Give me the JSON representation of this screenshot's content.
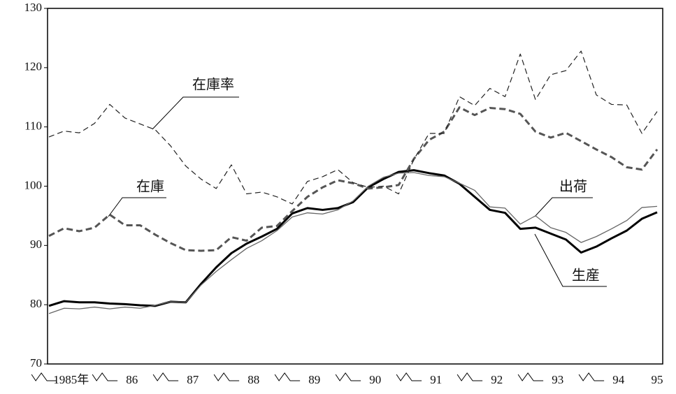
{
  "chart_data": {
    "type": "line",
    "categories": [
      null,
      "1985年",
      null,
      null,
      null,
      "86",
      null,
      null,
      null,
      "87",
      null,
      null,
      null,
      "88",
      null,
      null,
      null,
      "89",
      null,
      null,
      null,
      "90",
      null,
      null,
      null,
      "91",
      null,
      null,
      null,
      "92",
      null,
      null,
      null,
      "93",
      null,
      null,
      null,
      "94",
      null,
      null,
      "95"
    ],
    "ylim": [
      70,
      130
    ],
    "yticks": [
      70,
      80,
      90,
      100,
      110,
      120,
      130
    ],
    "series": [
      {
        "name": "生産",
        "color": "#000000",
        "width": 3,
        "dash": "none",
        "values": [
          79.8,
          80.6,
          80.4,
          80.4,
          80.2,
          80.1,
          79.9,
          79.8,
          80.5,
          80.4,
          83.5,
          86.3,
          88.7,
          90.3,
          91.5,
          92.8,
          95.4,
          96.3,
          96.0,
          96.3,
          97.3,
          99.8,
          101.2,
          102.4,
          102.7,
          102.2,
          101.8,
          100.4,
          98.2,
          96.0,
          95.5,
          92.8,
          93.0,
          92.0,
          91.0,
          88.8,
          89.8,
          91.2,
          92.5,
          94.5,
          95.6
        ]
      },
      {
        "name": "出荷",
        "color": "#666666",
        "width": 1.3,
        "dash": "none",
        "values": [
          78.5,
          79.4,
          79.3,
          79.6,
          79.3,
          79.6,
          79.4,
          79.9,
          80.5,
          80.4,
          83.3,
          85.6,
          87.6,
          89.5,
          90.8,
          92.5,
          94.8,
          95.5,
          95.3,
          96.0,
          97.5,
          100.0,
          101.5,
          102.2,
          102.3,
          101.8,
          101.6,
          100.5,
          99.3,
          96.5,
          96.3,
          93.6,
          95.0,
          93.0,
          92.2,
          90.5,
          91.5,
          92.8,
          94.2,
          96.4,
          96.6
        ]
      },
      {
        "name": "在庫",
        "color": "#555555",
        "width": 3,
        "dash": "9 5",
        "values": [
          91.6,
          92.9,
          92.4,
          93.0,
          95.2,
          93.4,
          93.4,
          91.8,
          90.4,
          89.2,
          89.1,
          89.2,
          91.4,
          90.8,
          93.0,
          93.3,
          95.8,
          98.2,
          99.8,
          101.0,
          100.5,
          99.6,
          99.8,
          100.2,
          104.6,
          107.8,
          109.2,
          113.3,
          112.0,
          113.2,
          113.0,
          112.2,
          109.2,
          108.2,
          109.0,
          107.6,
          106.2,
          104.9,
          103.2,
          102.8,
          106.2
        ]
      },
      {
        "name": "在庫率",
        "color": "#222222",
        "width": 1.2,
        "dash": "8 5",
        "values": [
          108.3,
          109.3,
          109.0,
          110.6,
          113.8,
          111.5,
          110.5,
          109.5,
          106.8,
          103.4,
          101.2,
          99.6,
          103.6,
          98.7,
          99.0,
          98.2,
          97.0,
          100.8,
          101.6,
          102.8,
          100.6,
          99.8,
          100.0,
          98.7,
          104.5,
          108.9,
          108.9,
          115.1,
          113.6,
          116.5,
          115.1,
          122.3,
          114.6,
          118.8,
          119.5,
          122.8,
          115.4,
          113.8,
          113.7,
          108.9,
          112.6
        ]
      }
    ]
  }
}
